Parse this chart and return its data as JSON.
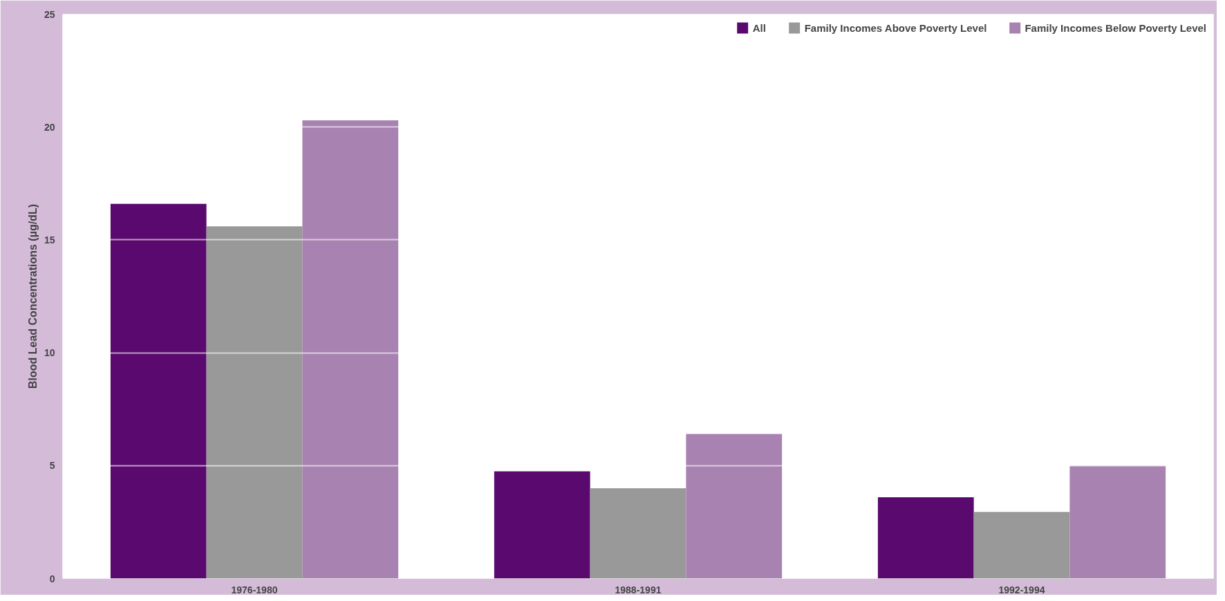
{
  "chart_data": {
    "type": "bar",
    "ylabel": "Blood Lead Concentrations (µg/dL)",
    "categories": [
      "1976-1980",
      "1988-1991",
      "1992-1994"
    ],
    "series": [
      {
        "name": "All",
        "color": "#5a0a6e",
        "values": [
          16.6,
          4.75,
          3.6
        ]
      },
      {
        "name": "Family Incomes Above Poverty Level",
        "color": "#999999",
        "values": [
          15.6,
          4.0,
          2.95
        ]
      },
      {
        "name": "Family Incomes Below Poverty Level",
        "color": "#a882b0",
        "values": [
          20.3,
          6.4,
          5.0
        ]
      }
    ],
    "ylim": [
      0,
      25
    ],
    "yticks": [
      0,
      5,
      10,
      15,
      20,
      25
    ],
    "grid": "y",
    "legend": "top right"
  }
}
